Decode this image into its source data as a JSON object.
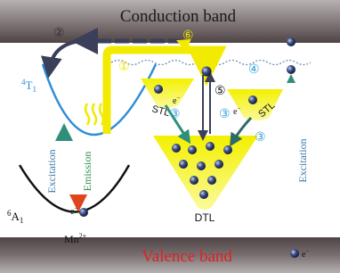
{
  "bands": {
    "conduction": "Conduction band",
    "valence": "Valence band"
  },
  "levels": {
    "excited": {
      "sup": "4",
      "main": "T",
      "sub": "1"
    },
    "ground": {
      "sup": "6",
      "main": "A",
      "sub": "1"
    },
    "ion": {
      "main": "Mn",
      "sup": "2+"
    }
  },
  "processes": [
    "①",
    "②",
    "③",
    "④",
    "⑤",
    "⑥"
  ],
  "traps": {
    "shallow": "STL",
    "deep": "DTL"
  },
  "arrows": {
    "excitation": "Excitation",
    "emission": "Emission"
  },
  "electron": {
    "main": "e",
    "sup": "−"
  }
}
